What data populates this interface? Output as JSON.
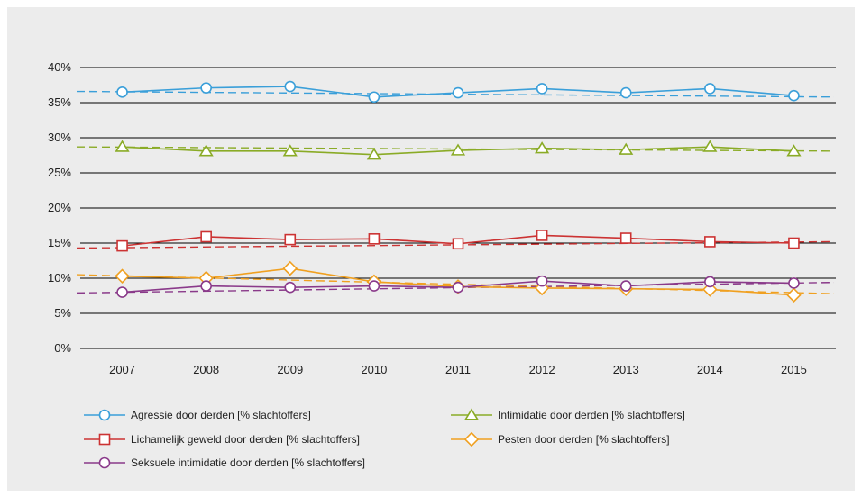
{
  "chart_data": {
    "type": "line",
    "x": [
      "2007",
      "2008",
      "2009",
      "2010",
      "2011",
      "2012",
      "2013",
      "2014",
      "2015"
    ],
    "y_ticks": [
      "0%",
      "5%",
      "10%",
      "15%",
      "20%",
      "25%",
      "30%",
      "35%",
      "40%"
    ],
    "ylim": [
      0,
      40
    ],
    "grid": true,
    "legend_position": "bottom",
    "trendlines": true,
    "series": [
      {
        "name": "Agressie door derden [% slachtoffers]",
        "color": "#3a9fd9",
        "marker": "circle",
        "values": [
          36.5,
          37.1,
          37.3,
          35.8,
          36.4,
          37.0,
          36.4,
          37.0,
          36.0
        ],
        "trend": [
          36.6,
          35.8
        ]
      },
      {
        "name": "Intimidatie door derden [% slachtoffers]",
        "color": "#8aab26",
        "marker": "triangle",
        "values": [
          28.7,
          28.1,
          28.1,
          27.6,
          28.2,
          28.5,
          28.3,
          28.7,
          28.1
        ],
        "trend": [
          28.7,
          28.1
        ]
      },
      {
        "name": "Lichamelijk geweld door derden [% slachtoffers]",
        "color": "#cc3333",
        "marker": "square",
        "values": [
          14.6,
          15.9,
          15.5,
          15.6,
          14.9,
          16.1,
          15.7,
          15.2,
          15.0
        ],
        "trend": [
          14.3,
          15.2
        ]
      },
      {
        "name": "Pesten door derden [% slachtoffers]",
        "color": "#f0a020",
        "marker": "diamond",
        "values": [
          10.3,
          10.0,
          11.4,
          9.5,
          8.8,
          8.6,
          8.5,
          8.4,
          7.6
        ],
        "trend": [
          10.5,
          7.8
        ]
      },
      {
        "name": "Seksuele intimidatie door derden [% slachtoffers]",
        "color": "#8a3a8a",
        "marker": "circle",
        "values": [
          8.0,
          8.9,
          8.7,
          8.9,
          8.7,
          9.6,
          8.9,
          9.5,
          9.3
        ],
        "trend": [
          7.9,
          9.4
        ]
      }
    ]
  }
}
